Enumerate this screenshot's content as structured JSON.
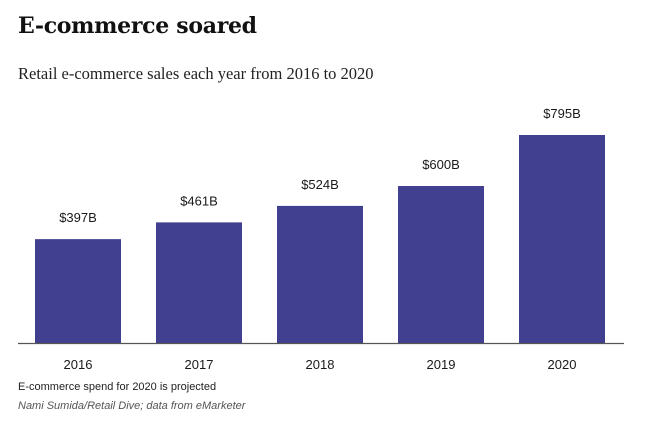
{
  "chart_data": {
    "type": "bar",
    "title": "E-commerce soared",
    "subtitle": "Retail e-commerce sales each year from 2016 to 2020",
    "categories": [
      "2016",
      "2017",
      "2018",
      "2019",
      "2020"
    ],
    "values": [
      397,
      461,
      524,
      600,
      795
    ],
    "value_labels": [
      "$397B",
      "$461B",
      "$524B",
      "$600B",
      "$795B"
    ],
    "xlabel": "",
    "ylabel": "",
    "ylim": [
      0,
      795
    ],
    "grid": false,
    "bar_color": "#413f8f",
    "axis_color": "#555555"
  },
  "footer": {
    "note": "E-commerce spend for 2020 is projected",
    "source": "Nami Sumida/Retail Dive; data from eMarketer"
  }
}
